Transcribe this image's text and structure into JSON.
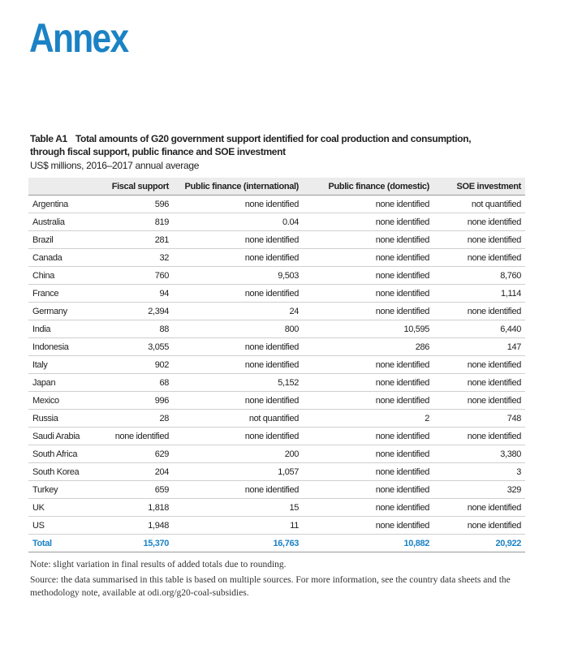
{
  "header": {
    "title": "Annex"
  },
  "table": {
    "label": "Table A1",
    "caption_lines": [
      "Total amounts of G20 government support identified for coal production and consumption,",
      "through fiscal support, public finance and SOE investment"
    ],
    "subcaption": "US$ millions, 2016–2017 annual average",
    "columns": [
      "",
      "Fiscal support",
      "Public finance (international)",
      "Public finance (domestic)",
      "SOE investment"
    ],
    "rows": [
      [
        "Argentina",
        "596",
        "none identified",
        "none identified",
        "not quantified"
      ],
      [
        "Australia",
        "819",
        "0.04",
        "none identified",
        "none identified"
      ],
      [
        "Brazil",
        "281",
        "none identified",
        "none identified",
        "none identified"
      ],
      [
        "Canada",
        "32",
        "none identified",
        "none identified",
        "none identified"
      ],
      [
        "China",
        "760",
        "9,503",
        "none identified",
        "8,760"
      ],
      [
        "France",
        "94",
        "none identified",
        "none identified",
        "1,114"
      ],
      [
        "Germany",
        "2,394",
        "24",
        "none identified",
        "none identified"
      ],
      [
        "India",
        "88",
        "800",
        "10,595",
        "6,440"
      ],
      [
        "Indonesia",
        "3,055",
        "none identified",
        "286",
        "147"
      ],
      [
        "Italy",
        "902",
        "none identified",
        "none identified",
        "none identified"
      ],
      [
        "Japan",
        "68",
        "5,152",
        "none identified",
        "none identified"
      ],
      [
        "Mexico",
        "996",
        "none identified",
        "none identified",
        "none identified"
      ],
      [
        "Russia",
        "28",
        "not quantified",
        "2",
        "748"
      ],
      [
        "Saudi Arabia",
        "none identified",
        "none identified",
        "none identified",
        "none identified"
      ],
      [
        "South Africa",
        "629",
        "200",
        "none identified",
        "3,380"
      ],
      [
        "South Korea",
        "204",
        "1,057",
        "none identified",
        "3"
      ],
      [
        "Turkey",
        "659",
        "none identified",
        "none identified",
        "329"
      ],
      [
        "UK",
        "1,818",
        "15",
        "none identified",
        "none identified"
      ],
      [
        "US",
        "1,948",
        "11",
        "none identified",
        "none identified"
      ]
    ],
    "total": [
      "Total",
      "15,370",
      "16,763",
      "10,882",
      "20,922"
    ]
  },
  "notes": [
    "Note: slight variation in final results of added totals due to rounding.",
    "Source: the data summarised in this table is based on multiple sources. For more information, see the country data sheets and the methodology note, available at odi.org/g20-coal-subsidies."
  ]
}
